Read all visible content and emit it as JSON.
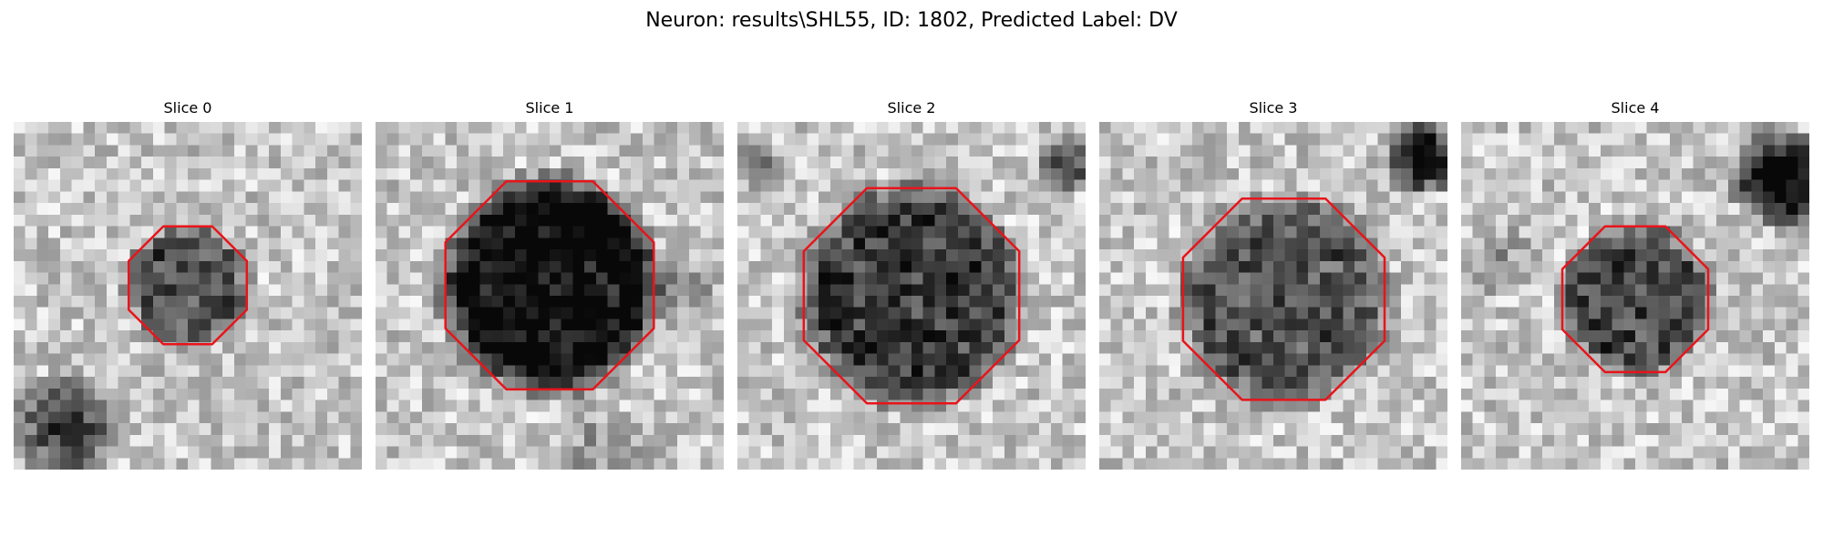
{
  "figure": {
    "title": "Neuron: results\\SHL55, ID: 1802, Predicted Label: DV"
  },
  "panels": [
    {
      "title": "Slice 0"
    },
    {
      "title": "Slice 1"
    },
    {
      "title": "Slice 2"
    },
    {
      "title": "Slice 3"
    },
    {
      "title": "Slice 4"
    }
  ],
  "colors": {
    "contour": "#e8141a"
  }
}
